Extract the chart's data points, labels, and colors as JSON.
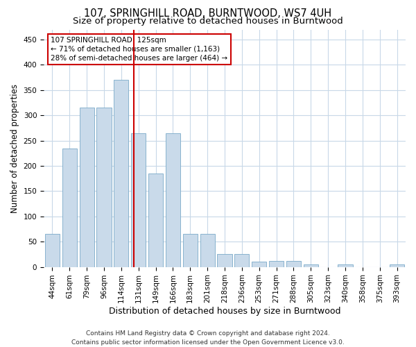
{
  "title": "107, SPRINGHILL ROAD, BURNTWOOD, WS7 4UH",
  "subtitle": "Size of property relative to detached houses in Burntwood",
  "xlabel": "Distribution of detached houses by size in Burntwood",
  "ylabel": "Number of detached properties",
  "categories": [
    "44sqm",
    "61sqm",
    "79sqm",
    "96sqm",
    "114sqm",
    "131sqm",
    "149sqm",
    "166sqm",
    "183sqm",
    "201sqm",
    "218sqm",
    "236sqm",
    "253sqm",
    "271sqm",
    "288sqm",
    "305sqm",
    "323sqm",
    "340sqm",
    "358sqm",
    "375sqm",
    "393sqm"
  ],
  "values": [
    65,
    235,
    315,
    315,
    370,
    265,
    185,
    265,
    65,
    65,
    25,
    25,
    10,
    12,
    12,
    5,
    0,
    5,
    0,
    0,
    5
  ],
  "bar_color": "#c9daea",
  "bar_edge_color": "#7aaac8",
  "vline_x": 4.72,
  "vline_color": "#cc0000",
  "annotation_line1": "107 SPRINGHILL ROAD: 125sqm",
  "annotation_line2": "← 71% of detached houses are smaller (1,163)",
  "annotation_line3": "28% of semi-detached houses are larger (464) →",
  "annotation_box_color": "#cc0000",
  "ylim": [
    0,
    470
  ],
  "yticks": [
    0,
    50,
    100,
    150,
    200,
    250,
    300,
    350,
    400,
    450
  ],
  "footnote1": "Contains HM Land Registry data © Crown copyright and database right 2024.",
  "footnote2": "Contains public sector information licensed under the Open Government Licence v3.0.",
  "bg_color": "#ffffff",
  "plot_bg_color": "#ffffff",
  "title_fontsize": 10.5,
  "subtitle_fontsize": 9.5,
  "xlabel_fontsize": 9,
  "ylabel_fontsize": 8.5,
  "tick_fontsize": 7.5,
  "footnote_fontsize": 6.5,
  "grid_color": "#c8d8e8"
}
